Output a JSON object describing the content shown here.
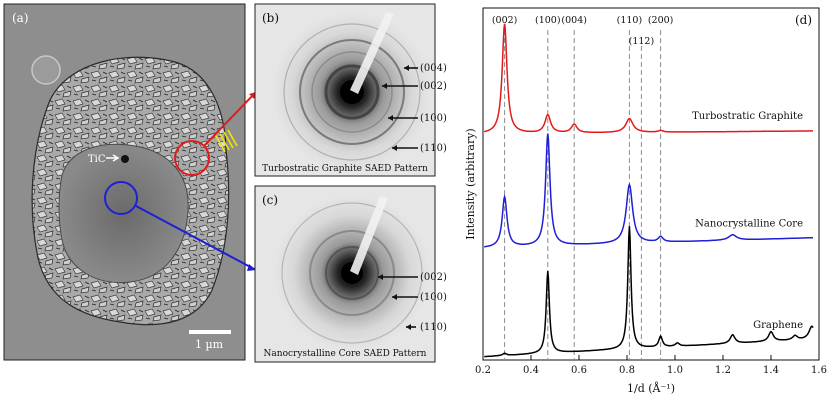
{
  "panels": {
    "a": {
      "label": "(a)",
      "tic_label": "TiC",
      "scale_bar_label": "1 µm"
    },
    "b": {
      "label": "(b)",
      "caption": "Turbostratic Graphite SAED Pattern",
      "ring_labels": [
        "(004)",
        "(002)",
        "(100)",
        "(110)"
      ]
    },
    "c": {
      "label": "(c)",
      "caption": "Nanocrystalline Core SAED Pattern",
      "ring_labels": [
        "(002)",
        "(100)",
        "(110)"
      ]
    },
    "d": {
      "label": "(d)"
    }
  },
  "colors": {
    "turbostratic": "#e31a1c",
    "nanocrystalline": "#1f1fd6",
    "graphene": "#000000",
    "guide": "#8c8c8c"
  },
  "chart_data": {
    "type": "line",
    "xlabel": "1/d (Å⁻¹)",
    "ylabel": "Intensity (arbitrary)",
    "xlim": [
      0.2,
      1.6
    ],
    "ylim": [
      0,
      3.3
    ],
    "x_ticks": [
      "0.2",
      "0.4",
      "0.6",
      "0.8",
      "1.0",
      "1.2",
      "1.4",
      "1.6"
    ],
    "x_tick_values": [
      0.2,
      0.4,
      0.6,
      0.8,
      1.0,
      1.2,
      1.4,
      1.6
    ],
    "reflections": [
      {
        "label": "(002)",
        "x": 0.29,
        "row": 0
      },
      {
        "label": "(100)",
        "x": 0.47,
        "row": 0
      },
      {
        "label": "(004)",
        "x": 0.58,
        "row": 0
      },
      {
        "label": "(110)",
        "x": 0.81,
        "row": 0
      },
      {
        "label": "(112)",
        "x": 0.86,
        "row": 1
      },
      {
        "label": "(200)",
        "x": 0.94,
        "row": 0
      }
    ],
    "series": [
      {
        "name": "Turbostratic Graphite",
        "color": "#e31a1c",
        "baseline": 2.12,
        "slope": 0.02,
        "peaks": [
          [
            0.29,
            1.03,
            0.012
          ],
          [
            0.47,
            0.17,
            0.014
          ],
          [
            0.58,
            0.08,
            0.014
          ],
          [
            0.81,
            0.13,
            0.018
          ],
          [
            0.94,
            0.015,
            0.012
          ]
        ]
      },
      {
        "name": "Nanocrystalline Core",
        "color": "#1f1fd6",
        "baseline": 1.05,
        "slope": 0.07,
        "peaks": [
          [
            0.29,
            0.47,
            0.012
          ],
          [
            0.47,
            1.05,
            0.011
          ],
          [
            0.81,
            0.55,
            0.016
          ],
          [
            0.94,
            0.05,
            0.012
          ],
          [
            1.24,
            0.05,
            0.02
          ]
        ]
      },
      {
        "name": "Graphene",
        "color": "#000000",
        "baseline": 0.03,
        "slope": 0.12,
        "peaks": [
          [
            0.29,
            0.02,
            0.01
          ],
          [
            0.47,
            0.77,
            0.008
          ],
          [
            0.81,
            1.15,
            0.008
          ],
          [
            0.94,
            0.1,
            0.009
          ],
          [
            1.01,
            0.03,
            0.01
          ],
          [
            1.24,
            0.08,
            0.012
          ],
          [
            1.4,
            0.09,
            0.012
          ],
          [
            1.5,
            0.04,
            0.012
          ],
          [
            1.57,
            0.12,
            0.014
          ]
        ]
      }
    ]
  }
}
